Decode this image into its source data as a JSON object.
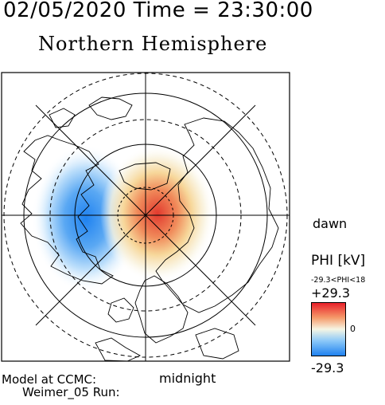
{
  "header": {
    "timestamp": "02/05/2020 Time = 23:30:00",
    "title": "Northern Hemisphere"
  },
  "map": {
    "labels": {
      "dawn": "dawn",
      "midnight": "midnight"
    },
    "plot_type": "polar north-pole projection",
    "field": "electric potential"
  },
  "colorbar": {
    "title": "PHI [kV]",
    "range_text": "-29.3<PHI<18",
    "max_label": "+29.3",
    "zero_label": "0",
    "min_label": "-29.3",
    "colors": {
      "max": "#e8202a",
      "mid": "#f6f6e4",
      "min": "#1f82f0"
    }
  },
  "footer": {
    "model_label": "Model at CCMC:",
    "run_label": "Weimer_05 Run:"
  }
}
